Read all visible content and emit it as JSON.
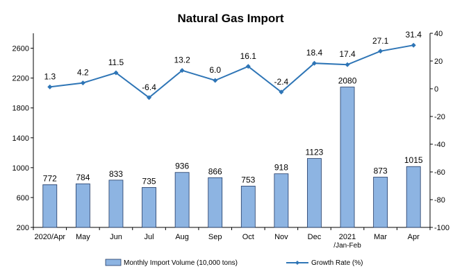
{
  "chart_data": {
    "type": "bar+line",
    "title": "Natural Gas Import",
    "categories": [
      [
        "2020/Apr"
      ],
      [
        "May"
      ],
      [
        "Jun"
      ],
      [
        "Jul"
      ],
      [
        "Aug"
      ],
      [
        "Sep"
      ],
      [
        "Oct"
      ],
      [
        "Nov"
      ],
      [
        "Dec"
      ],
      [
        "2021",
        "/Jan-Feb"
      ],
      [
        "Mar"
      ],
      [
        "Apr"
      ]
    ],
    "series": [
      {
        "name": "Monthly Import Volume (10,000 tons)",
        "type": "bar",
        "axis": "left",
        "color": "#8DB4E2",
        "values": [
          772,
          784,
          833,
          735,
          936,
          866,
          753,
          918,
          1123,
          2080,
          873,
          1015
        ],
        "labels": [
          "772",
          "784",
          "833",
          "735",
          "936",
          "866",
          "753",
          "918",
          "1123",
          "2080",
          "873",
          "1015"
        ]
      },
      {
        "name": "Growth Rate (%)",
        "type": "line",
        "axis": "right",
        "color": "#2E75B6",
        "values": [
          1.3,
          4.2,
          11.5,
          -6.4,
          13.2,
          6.0,
          16.1,
          -2.4,
          18.4,
          17.4,
          27.1,
          31.4
        ],
        "labels": [
          "1.3",
          "4.2",
          "11.5",
          "-6.4",
          "13.2",
          "6.0",
          "16.1",
          "-2.4",
          "18.4",
          "17.4",
          "27.1",
          "31.4"
        ]
      }
    ],
    "y_left": {
      "min": 200,
      "max": 2800,
      "ticks": [
        200,
        600,
        1000,
        1400,
        1800,
        2200,
        2600
      ]
    },
    "y_right": {
      "min": -100,
      "max": 40,
      "ticks": [
        -100,
        -80,
        -60,
        -40,
        -20,
        0,
        20,
        40
      ]
    },
    "legend": {
      "position": "bottom"
    },
    "grid": false
  }
}
